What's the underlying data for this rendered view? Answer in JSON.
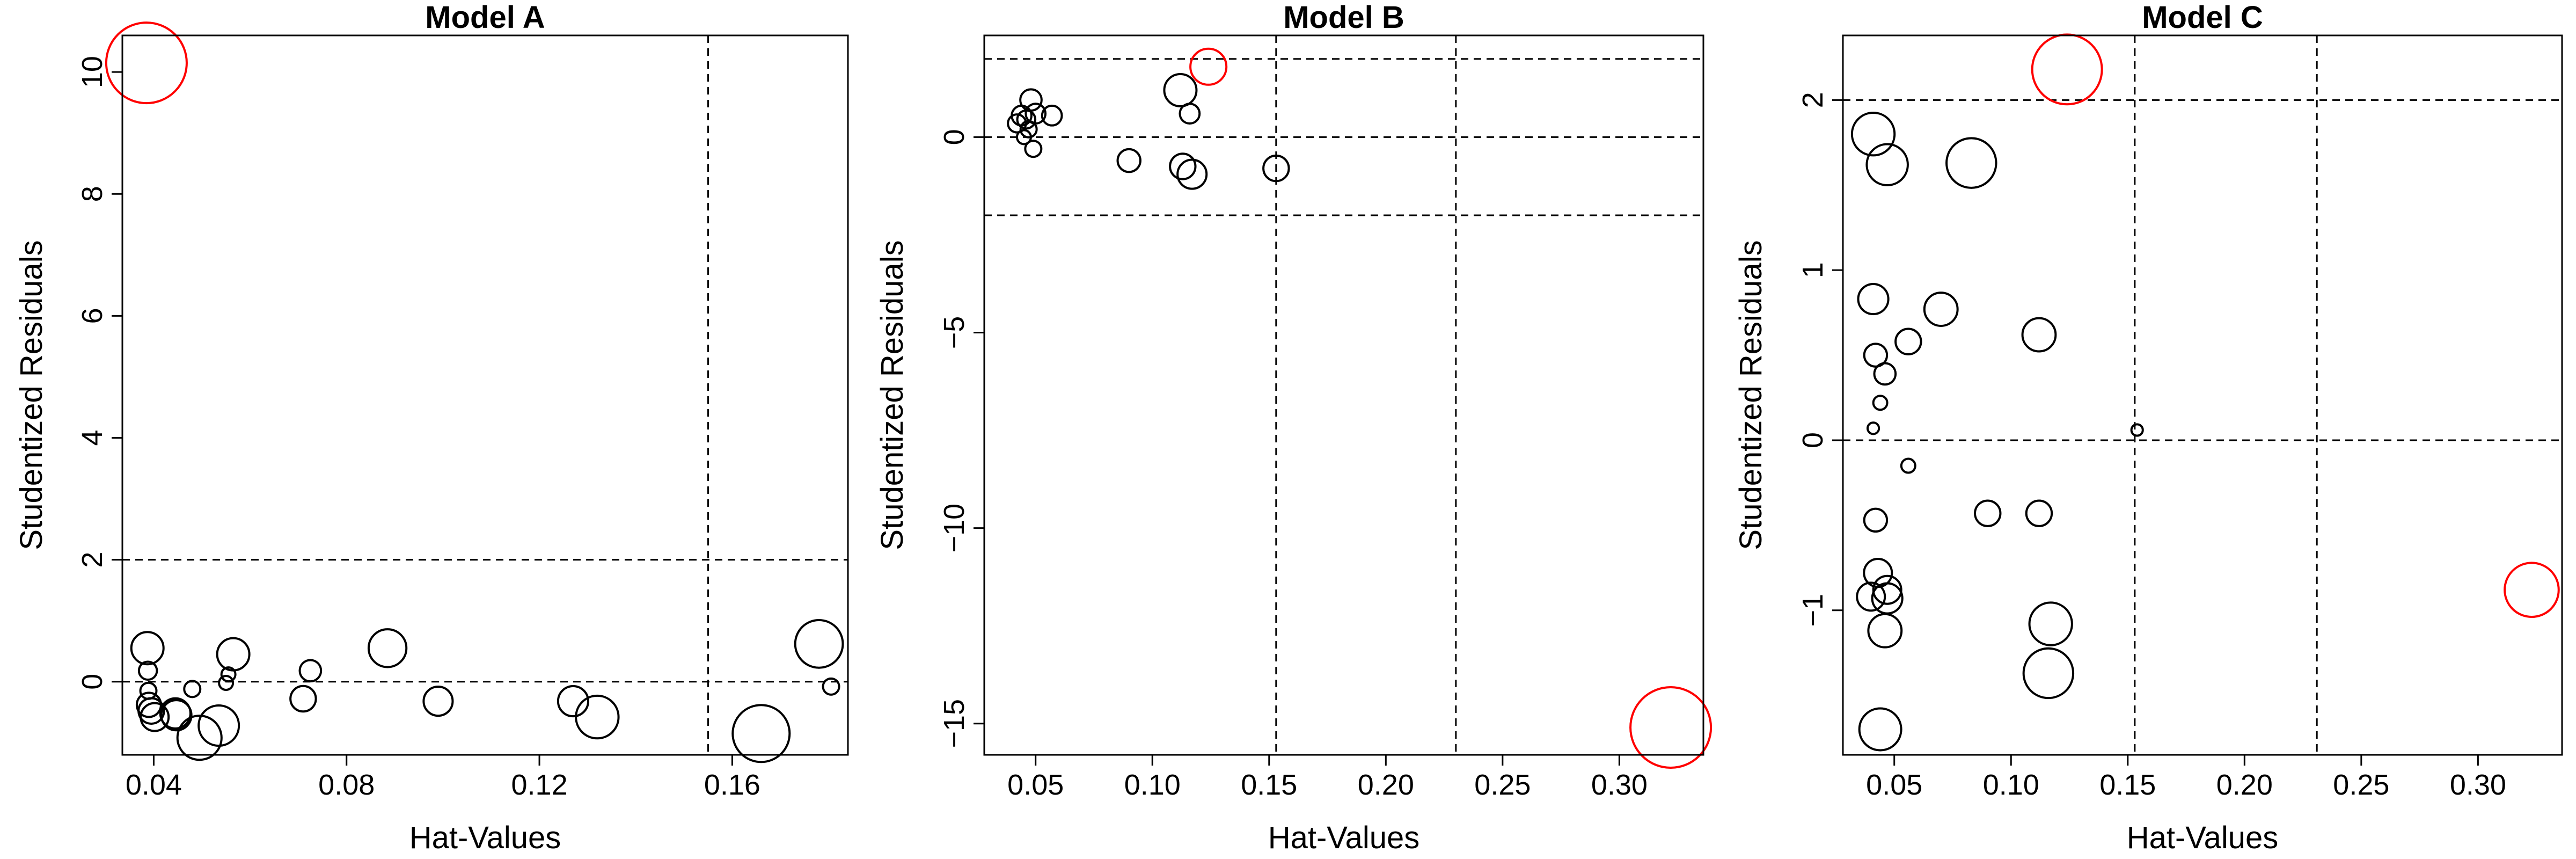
{
  "chart_data": [
    {
      "type": "scatter",
      "title": "Model A",
      "xlabel": "Hat-Values",
      "ylabel": "Studentized Residuals",
      "xlim": [
        0.0335,
        0.184
      ],
      "ylim": [
        -1.2,
        10.6
      ],
      "xticks": [
        0.04,
        0.08,
        0.12,
        0.16
      ],
      "xtick_labels": [
        "0.04",
        "0.08",
        "0.12",
        "0.16"
      ],
      "yticks": [
        0,
        2,
        4,
        6,
        8,
        10
      ],
      "ytick_labels": [
        "0",
        "2",
        "4",
        "6",
        "8",
        "10"
      ],
      "hlines": [
        0,
        2
      ],
      "vlines": [
        0.155
      ],
      "grid": false,
      "legend": "none",
      "points": [
        {
          "x": 0.0385,
          "y": 10.15,
          "size": 1.0,
          "color": "#ff0000"
        },
        {
          "x": 0.0387,
          "y": 0.55,
          "size": 0.16
        },
        {
          "x": 0.0388,
          "y": 0.18,
          "size": 0.05
        },
        {
          "x": 0.0389,
          "y": -0.15,
          "size": 0.04
        },
        {
          "x": 0.039,
          "y": -0.38,
          "size": 0.09
        },
        {
          "x": 0.0395,
          "y": -0.48,
          "size": 0.1
        },
        {
          "x": 0.0402,
          "y": -0.58,
          "size": 0.12
        },
        {
          "x": 0.0445,
          "y": -0.52,
          "size": 0.14
        },
        {
          "x": 0.0447,
          "y": -0.55,
          "size": 0.14
        },
        {
          "x": 0.048,
          "y": -0.12,
          "size": 0.04
        },
        {
          "x": 0.0495,
          "y": -0.92,
          "size": 0.3
        },
        {
          "x": 0.0535,
          "y": -0.72,
          "size": 0.25
        },
        {
          "x": 0.055,
          "y": -0.02,
          "size": 0.03
        },
        {
          "x": 0.0565,
          "y": 0.45,
          "size": 0.16
        },
        {
          "x": 0.0555,
          "y": 0.12,
          "size": 0.03
        },
        {
          "x": 0.071,
          "y": -0.28,
          "size": 0.1
        },
        {
          "x": 0.0725,
          "y": 0.18,
          "size": 0.07
        },
        {
          "x": 0.0885,
          "y": 0.55,
          "size": 0.22
        },
        {
          "x": 0.099,
          "y": -0.32,
          "size": 0.13
        },
        {
          "x": 0.127,
          "y": -0.32,
          "size": 0.14
        },
        {
          "x": 0.132,
          "y": -0.58,
          "size": 0.28
        },
        {
          "x": 0.166,
          "y": -0.85,
          "size": 0.5
        },
        {
          "x": 0.178,
          "y": 0.62,
          "size": 0.35
        },
        {
          "x": 0.1805,
          "y": -0.08,
          "size": 0.04
        }
      ]
    },
    {
      "type": "scatter",
      "title": "Model B",
      "xlabel": "Hat-Values",
      "ylabel": "Studentized Residuals",
      "xlim": [
        0.028,
        0.336
      ],
      "ylim": [
        -15.8,
        2.6
      ],
      "xticks": [
        0.05,
        0.1,
        0.15,
        0.2,
        0.25,
        0.3
      ],
      "xtick_labels": [
        "0.05",
        "0.10",
        "0.15",
        "0.20",
        "0.25",
        "0.30"
      ],
      "yticks": [
        -15,
        -10,
        -5,
        0
      ],
      "ytick_labels": [
        "−15",
        "−10",
        "−5",
        "0"
      ],
      "hlines": [
        2,
        0,
        -2
      ],
      "vlines": [
        0.153,
        0.23
      ],
      "grid": false,
      "legend": "none",
      "points": [
        {
          "x": 0.042,
          "y": 0.35,
          "size": 0.05
        },
        {
          "x": 0.044,
          "y": 0.55,
          "size": 0.06
        },
        {
          "x": 0.045,
          "y": 0.0,
          "size": 0.03
        },
        {
          "x": 0.046,
          "y": 0.45,
          "size": 0.05
        },
        {
          "x": 0.047,
          "y": 0.2,
          "size": 0.04
        },
        {
          "x": 0.048,
          "y": 0.95,
          "size": 0.07
        },
        {
          "x": 0.049,
          "y": -0.3,
          "size": 0.04
        },
        {
          "x": 0.05,
          "y": 0.6,
          "size": 0.06
        },
        {
          "x": 0.057,
          "y": 0.55,
          "size": 0.06
        },
        {
          "x": 0.09,
          "y": -0.6,
          "size": 0.08
        },
        {
          "x": 0.112,
          "y": 1.2,
          "size": 0.16
        },
        {
          "x": 0.113,
          "y": -0.75,
          "size": 0.1
        },
        {
          "x": 0.116,
          "y": 0.6,
          "size": 0.06
        },
        {
          "x": 0.117,
          "y": -0.95,
          "size": 0.13
        },
        {
          "x": 0.124,
          "y": 1.8,
          "size": 0.2,
          "color": "#ff0000"
        },
        {
          "x": 0.153,
          "y": -0.8,
          "size": 0.1
        },
        {
          "x": 0.322,
          "y": -15.1,
          "size": 1.0,
          "color": "#ff0000"
        }
      ]
    },
    {
      "type": "scatter",
      "title": "Model C",
      "xlabel": "Hat-Values",
      "ylabel": "Studentized Residuals",
      "xlim": [
        0.028,
        0.336
      ],
      "ylim": [
        -1.85,
        2.38
      ],
      "xticks": [
        0.05,
        0.1,
        0.15,
        0.2,
        0.25,
        0.3
      ],
      "xtick_labels": [
        "0.05",
        "0.10",
        "0.15",
        "0.20",
        "0.25",
        "0.30"
      ],
      "yticks": [
        -1,
        0,
        1,
        2
      ],
      "ytick_labels": [
        "−1",
        "0",
        "1",
        "2"
      ],
      "hlines": [
        2,
        0
      ],
      "vlines": [
        0.153,
        0.231
      ],
      "grid": false,
      "legend": "none",
      "points": [
        {
          "x": 0.041,
          "y": 1.8,
          "size": 0.28
        },
        {
          "x": 0.047,
          "y": 1.62,
          "size": 0.26
        },
        {
          "x": 0.083,
          "y": 1.63,
          "size": 0.38
        },
        {
          "x": 0.124,
          "y": 2.18,
          "size": 0.75,
          "color": "#ff0000"
        },
        {
          "x": 0.041,
          "y": 0.83,
          "size": 0.14
        },
        {
          "x": 0.07,
          "y": 0.77,
          "size": 0.17
        },
        {
          "x": 0.112,
          "y": 0.62,
          "size": 0.17
        },
        {
          "x": 0.056,
          "y": 0.58,
          "size": 0.1
        },
        {
          "x": 0.042,
          "y": 0.5,
          "size": 0.08
        },
        {
          "x": 0.046,
          "y": 0.39,
          "size": 0.07
        },
        {
          "x": 0.044,
          "y": 0.22,
          "size": 0.03
        },
        {
          "x": 0.041,
          "y": 0.07,
          "size": 0.02
        },
        {
          "x": 0.154,
          "y": 0.06,
          "size": 0.02
        },
        {
          "x": 0.056,
          "y": -0.15,
          "size": 0.03
        },
        {
          "x": 0.09,
          "y": -0.43,
          "size": 0.1
        },
        {
          "x": 0.112,
          "y": -0.43,
          "size": 0.1
        },
        {
          "x": 0.042,
          "y": -0.47,
          "size": 0.08
        },
        {
          "x": 0.043,
          "y": -0.78,
          "size": 0.12
        },
        {
          "x": 0.04,
          "y": -0.92,
          "size": 0.12
        },
        {
          "x": 0.047,
          "y": -0.88,
          "size": 0.12
        },
        {
          "x": 0.047,
          "y": -0.93,
          "size": 0.14
        },
        {
          "x": 0.046,
          "y": -1.12,
          "size": 0.17
        },
        {
          "x": 0.117,
          "y": -1.08,
          "size": 0.28
        },
        {
          "x": 0.116,
          "y": -1.37,
          "size": 0.38
        },
        {
          "x": 0.044,
          "y": -1.7,
          "size": 0.27
        },
        {
          "x": 0.323,
          "y": -0.88,
          "size": 0.45,
          "color": "#ff0000"
        }
      ]
    }
  ]
}
